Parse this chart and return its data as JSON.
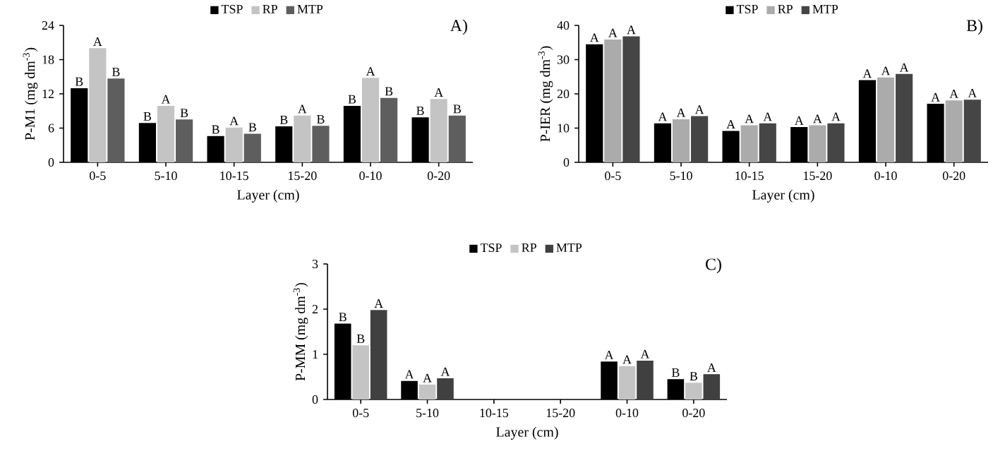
{
  "chart_data": [
    {
      "type": "bar",
      "title": "A)",
      "xlabel": "Layer (cm)",
      "ylabel": "P-M1 (mg dm$^{-3}$)",
      "categories": [
        "0-5",
        "5-10",
        "10-15",
        "15-20",
        "0-10",
        "0-20"
      ],
      "ylim": [
        0,
        24
      ],
      "yticks": [
        0,
        6,
        12,
        18,
        24
      ],
      "legend": "top",
      "series": [
        {
          "name": "TSP",
          "color": "#000000",
          "values": [
            13.0,
            6.9,
            4.6,
            6.3,
            9.9,
            7.9
          ],
          "value_labels": [
            "B",
            "B",
            "B",
            "B",
            "B",
            "B"
          ]
        },
        {
          "name": "RP",
          "color": "#c4c4c4",
          "values": [
            20.0,
            9.9,
            6.1,
            8.2,
            14.8,
            11.1
          ],
          "value_labels": [
            "A",
            "A",
            "A",
            "A",
            "A",
            "A"
          ]
        },
        {
          "name": "MTP",
          "color": "#5e5e5e",
          "values": [
            14.7,
            7.5,
            5.0,
            6.4,
            11.3,
            8.2
          ],
          "value_labels": [
            "B",
            "B",
            "B",
            "B",
            "B",
            "B"
          ]
        }
      ]
    },
    {
      "type": "bar",
      "title": "B)",
      "xlabel": "Layer (cm)",
      "ylabel": "P-IER (mg dm$^{-3}$)",
      "categories": [
        "0-5",
        "5-10",
        "10-15",
        "15-20",
        "0-10",
        "0-20"
      ],
      "ylim": [
        0,
        40
      ],
      "yticks": [
        0,
        10,
        20,
        30,
        40
      ],
      "legend": "top",
      "series": [
        {
          "name": "TSP",
          "color": "#000000",
          "values": [
            34.5,
            11.4,
            9.2,
            10.3,
            24.0,
            17.1
          ],
          "value_labels": [
            "A",
            "A",
            "A",
            "A",
            "A",
            "A"
          ]
        },
        {
          "name": "RP",
          "color": "#ababab",
          "values": [
            35.9,
            12.6,
            10.8,
            10.8,
            24.8,
            18.1
          ],
          "value_labels": [
            "A",
            "A",
            "A",
            "A",
            "A",
            "A"
          ]
        },
        {
          "name": "MTP",
          "color": "#454545",
          "values": [
            36.8,
            13.5,
            11.4,
            11.4,
            25.8,
            18.3
          ],
          "value_labels": [
            "A",
            "A",
            "A",
            "A",
            "A",
            "A"
          ]
        }
      ]
    },
    {
      "type": "bar",
      "title": "C)",
      "xlabel": "Layer (cm)",
      "ylabel": "P-MM (mg dm$^{-3}$)",
      "categories": [
        "0-5",
        "5-10",
        "10-15",
        "15-20",
        "0-10",
        "0-20"
      ],
      "ylim": [
        0,
        3
      ],
      "yticks": [
        0,
        1,
        2,
        3
      ],
      "legend": "top",
      "series": [
        {
          "name": "TSP",
          "color": "#000000",
          "values": [
            1.68,
            0.41,
            null,
            null,
            0.84,
            0.45
          ],
          "value_labels": [
            "B",
            "A",
            null,
            null,
            "A",
            "B"
          ]
        },
        {
          "name": "RP",
          "color": "#c4c4c4",
          "values": [
            1.2,
            0.33,
            null,
            null,
            0.74,
            0.37
          ],
          "value_labels": [
            "B",
            "A",
            null,
            null,
            "A",
            "B"
          ]
        },
        {
          "name": "MTP",
          "color": "#404040",
          "values": [
            1.98,
            0.47,
            null,
            null,
            0.86,
            0.56
          ],
          "value_labels": [
            "A",
            "A",
            null,
            null,
            "A",
            "A"
          ]
        }
      ]
    }
  ]
}
